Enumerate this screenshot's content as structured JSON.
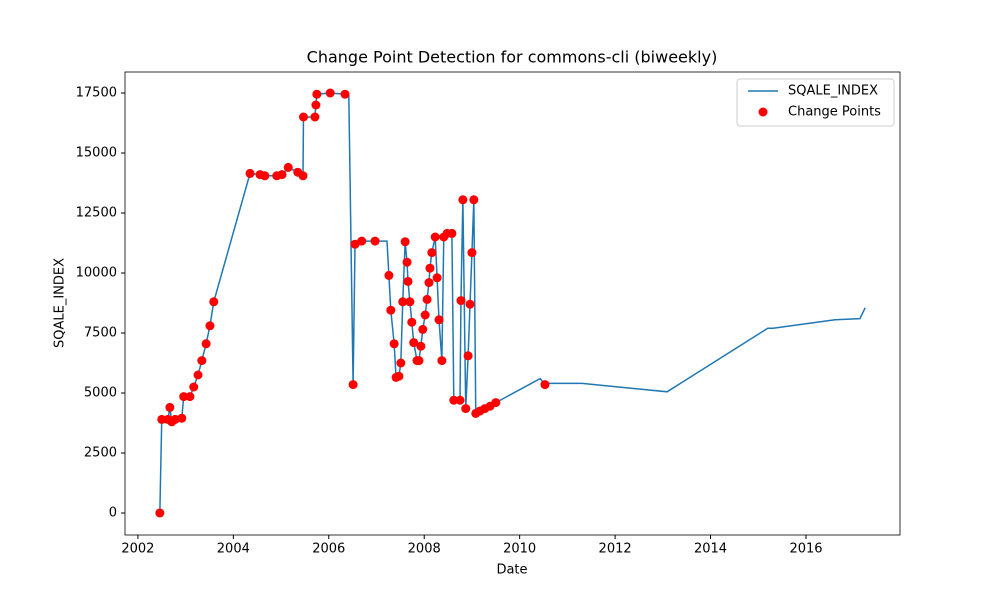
{
  "chart_data": {
    "type": "line",
    "title": "Change Point Detection for commons-cli (biweekly)",
    "x_label": "Date",
    "y_label": "SQALE_INDEX",
    "xlim": [
      2001.73,
      2017.97
    ],
    "ylim": [
      -917,
      18375
    ],
    "xticks": [
      2002,
      2004,
      2006,
      2008,
      2010,
      2012,
      2014,
      2016
    ],
    "yticks": [
      0,
      2500,
      5000,
      7500,
      10000,
      12500,
      15000,
      17500
    ],
    "legend": "upper right",
    "series": [
      {
        "name": "SQALE_INDEX",
        "type": "line",
        "color": "#1f77b4",
        "x": [
          2002.46,
          2002.5,
          2002.63,
          2002.67,
          2002.71,
          2002.78,
          2002.92,
          2002.96,
          2003.09,
          2003.17,
          2003.26,
          2003.34,
          2003.43,
          2003.51,
          2003.59,
          2004.35,
          2004.56,
          2004.66,
          2004.91,
          2005.02,
          2005.15,
          2005.35,
          2005.46,
          2005.47,
          2005.71,
          2005.73,
          2005.75,
          2006.03,
          2006.34,
          2006.42,
          2006.51,
          2006.55,
          2006.69,
          2006.97,
          2007.22,
          2007.26,
          2007.3,
          2007.37,
          2007.41,
          2007.47,
          2007.51,
          2007.55,
          2007.6,
          2007.64,
          2007.66,
          2007.7,
          2007.74,
          2007.78,
          2007.85,
          2007.89,
          2007.93,
          2007.97,
          2008.02,
          2008.06,
          2008.1,
          2008.12,
          2008.16,
          2008.23,
          2008.27,
          2008.31,
          2008.37,
          2008.41,
          2008.48,
          2008.58,
          2008.62,
          2008.75,
          2008.77,
          2008.81,
          2008.87,
          2008.92,
          2008.96,
          2009.0,
          2009.04,
          2009.08,
          2009.17,
          2009.27,
          2009.38,
          2009.5,
          2010.43,
          2010.53,
          2010.59,
          2011.31,
          2013.09,
          2015.2,
          2015.31,
          2016.61,
          2017.13,
          2017.24
        ],
        "values": [
          0,
          3900,
          3900,
          4400,
          3800,
          3900,
          3950,
          4850,
          4850,
          5250,
          5750,
          6350,
          7050,
          7800,
          8800,
          14150,
          14100,
          14050,
          14050,
          14100,
          14400,
          14200,
          14050,
          16500,
          16500,
          17000,
          17450,
          17500,
          17450,
          17400,
          5350,
          11200,
          11330,
          11330,
          11330,
          9900,
          8450,
          7050,
          5650,
          5700,
          6250,
          8800,
          11300,
          10450,
          9650,
          8800,
          7950,
          7100,
          6350,
          6350,
          6950,
          7650,
          8250,
          8900,
          9600,
          10200,
          10850,
          11500,
          9800,
          8050,
          6350,
          11500,
          11650,
          11650,
          4700,
          4700,
          8850,
          13050,
          4350,
          6550,
          8700,
          10850,
          13050,
          4150,
          4250,
          4350,
          4450,
          4600,
          5600,
          5350,
          5400,
          5400,
          5050,
          7700,
          7700,
          8050,
          8100,
          8550
        ]
      },
      {
        "name": "Change Points",
        "type": "scatter",
        "color": "#ff0000",
        "x": [
          2002.46,
          2002.5,
          2002.63,
          2002.67,
          2002.71,
          2002.78,
          2002.92,
          2002.96,
          2003.09,
          2003.17,
          2003.26,
          2003.34,
          2003.43,
          2003.51,
          2003.59,
          2004.35,
          2004.56,
          2004.66,
          2004.91,
          2005.02,
          2005.15,
          2005.35,
          2005.46,
          2005.47,
          2005.71,
          2005.73,
          2005.75,
          2006.03,
          2006.34,
          2006.51,
          2006.55,
          2006.69,
          2006.97,
          2007.26,
          2007.3,
          2007.37,
          2007.41,
          2007.47,
          2007.51,
          2007.55,
          2007.6,
          2007.64,
          2007.66,
          2007.7,
          2007.74,
          2007.78,
          2007.85,
          2007.89,
          2007.93,
          2007.97,
          2008.02,
          2008.06,
          2008.1,
          2008.12,
          2008.16,
          2008.23,
          2008.27,
          2008.31,
          2008.37,
          2008.41,
          2008.48,
          2008.58,
          2008.62,
          2008.75,
          2008.77,
          2008.81,
          2008.87,
          2008.92,
          2008.96,
          2009.0,
          2009.04,
          2009.08,
          2009.17,
          2009.27,
          2009.38,
          2009.5,
          2010.53
        ],
        "values": [
          0,
          3900,
          3900,
          4400,
          3800,
          3900,
          3950,
          4850,
          4850,
          5250,
          5750,
          6350,
          7050,
          7800,
          8800,
          14150,
          14100,
          14050,
          14050,
          14100,
          14400,
          14200,
          14050,
          16500,
          16500,
          17000,
          17450,
          17500,
          17450,
          5350,
          11200,
          11330,
          11330,
          9900,
          8450,
          7050,
          5650,
          5700,
          6250,
          8800,
          11300,
          10450,
          9650,
          8800,
          7950,
          7100,
          6350,
          6350,
          6950,
          7650,
          8250,
          8900,
          9600,
          10200,
          10850,
          11500,
          9800,
          8050,
          6350,
          11500,
          11650,
          11650,
          4700,
          4700,
          8850,
          13050,
          4350,
          6550,
          8700,
          10850,
          13050,
          4150,
          4250,
          4350,
          4450,
          4600,
          5350
        ]
      }
    ]
  }
}
